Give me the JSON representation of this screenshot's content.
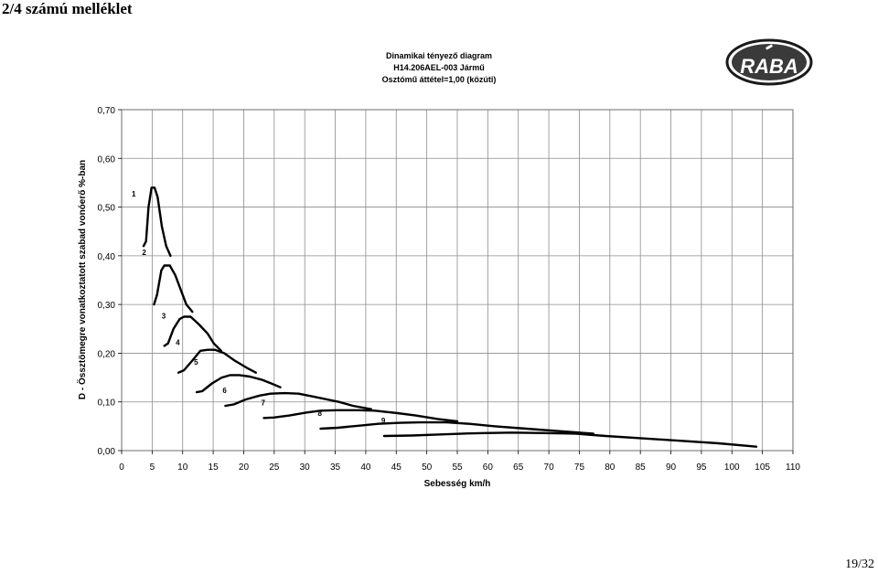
{
  "header": {
    "text": "2/4 számú melléklet"
  },
  "title": {
    "line1": "Dinamikai tényező diagram",
    "line2": "H14.206AEL-003 Jármű",
    "line3": "Osztómű áttétel=1,00 (közúti)"
  },
  "logo": {
    "text": "RABA"
  },
  "page_number": "19/32",
  "chart_data": {
    "type": "line",
    "xlabel": "Sebesség km/h",
    "ylabel": "D - Össztömegre vonatkoztatott szabad vonóerő %-ban",
    "xlim": [
      0,
      110
    ],
    "ylim": [
      0,
      0.7
    ],
    "x_ticks": [
      "0",
      "5",
      "10",
      "15",
      "20",
      "25",
      "30",
      "35",
      "40",
      "45",
      "50",
      "55",
      "60",
      "65",
      "70",
      "75",
      "80",
      "85",
      "90",
      "95",
      "100",
      "105",
      "110"
    ],
    "y_ticks": [
      "0,00",
      "0,10",
      "0,20",
      "0,30",
      "0,40",
      "0,50",
      "0,60",
      "0,70"
    ],
    "grid": true,
    "series": [
      {
        "name": "1",
        "points": [
          [
            3.6,
            0.42
          ],
          [
            4.0,
            0.43
          ],
          [
            4.4,
            0.5
          ],
          [
            4.9,
            0.54
          ],
          [
            5.4,
            0.54
          ],
          [
            5.9,
            0.52
          ],
          [
            6.6,
            0.46
          ],
          [
            7.3,
            0.42
          ],
          [
            8.0,
            0.4
          ]
        ]
      },
      {
        "name": "2",
        "points": [
          [
            5.3,
            0.3
          ],
          [
            5.8,
            0.32
          ],
          [
            6.5,
            0.37
          ],
          [
            7.0,
            0.38
          ],
          [
            7.9,
            0.38
          ],
          [
            8.8,
            0.36
          ],
          [
            9.7,
            0.33
          ],
          [
            10.6,
            0.3
          ],
          [
            11.6,
            0.285
          ]
        ]
      },
      {
        "name": "3",
        "points": [
          [
            7.0,
            0.215
          ],
          [
            7.6,
            0.22
          ],
          [
            8.5,
            0.25
          ],
          [
            9.5,
            0.27
          ],
          [
            10.2,
            0.275
          ],
          [
            11.3,
            0.275
          ],
          [
            12.6,
            0.26
          ],
          [
            14.1,
            0.24
          ],
          [
            15.1,
            0.22
          ],
          [
            16.3,
            0.205
          ]
        ]
      },
      {
        "name": "4",
        "points": [
          [
            9.3,
            0.16
          ],
          [
            10.2,
            0.165
          ],
          [
            11.6,
            0.185
          ],
          [
            12.9,
            0.205
          ],
          [
            14.1,
            0.207
          ],
          [
            15.3,
            0.207
          ],
          [
            16.8,
            0.2
          ],
          [
            18.5,
            0.185
          ],
          [
            20.5,
            0.17
          ],
          [
            22.0,
            0.16
          ]
        ]
      },
      {
        "name": "5",
        "points": [
          [
            12.3,
            0.12
          ],
          [
            13.2,
            0.122
          ],
          [
            14.8,
            0.138
          ],
          [
            16.4,
            0.15
          ],
          [
            17.8,
            0.155
          ],
          [
            19.3,
            0.155
          ],
          [
            21.0,
            0.152
          ],
          [
            23.1,
            0.145
          ],
          [
            24.5,
            0.138
          ],
          [
            26.0,
            0.13
          ]
        ]
      },
      {
        "name": "6",
        "points": [
          [
            17.0,
            0.092
          ],
          [
            18.4,
            0.095
          ],
          [
            20.3,
            0.105
          ],
          [
            22.6,
            0.113
          ],
          [
            24.4,
            0.117
          ],
          [
            26.7,
            0.118
          ],
          [
            29.0,
            0.117
          ],
          [
            31.8,
            0.11
          ],
          [
            35.6,
            0.1
          ],
          [
            37.9,
            0.092
          ],
          [
            40.9,
            0.085
          ]
        ]
      },
      {
        "name": "7",
        "points": [
          [
            23.3,
            0.067
          ],
          [
            24.9,
            0.068
          ],
          [
            27.5,
            0.072
          ],
          [
            30.2,
            0.078
          ],
          [
            32.6,
            0.082
          ],
          [
            35.3,
            0.083
          ],
          [
            38.9,
            0.083
          ],
          [
            41.5,
            0.082
          ],
          [
            45.2,
            0.077
          ],
          [
            48.2,
            0.072
          ],
          [
            51.8,
            0.065
          ],
          [
            55.0,
            0.06
          ]
        ]
      },
      {
        "name": "8",
        "points": [
          [
            32.6,
            0.045
          ],
          [
            35.4,
            0.047
          ],
          [
            38.8,
            0.051
          ],
          [
            42.0,
            0.055
          ],
          [
            45.7,
            0.057
          ],
          [
            49.0,
            0.058
          ],
          [
            53.2,
            0.058
          ],
          [
            57.0,
            0.055
          ],
          [
            61.2,
            0.05
          ],
          [
            66.3,
            0.045
          ],
          [
            71.7,
            0.04
          ],
          [
            77.3,
            0.035
          ]
        ]
      },
      {
        "name": "9",
        "points": [
          [
            43.0,
            0.03
          ],
          [
            47.5,
            0.031
          ],
          [
            51.8,
            0.033
          ],
          [
            55.9,
            0.035
          ],
          [
            59.5,
            0.036
          ],
          [
            64.0,
            0.037
          ],
          [
            69.2,
            0.036
          ],
          [
            74.3,
            0.035
          ],
          [
            79.3,
            0.03
          ],
          [
            85.6,
            0.025
          ],
          [
            91.7,
            0.02
          ],
          [
            97.8,
            0.015
          ],
          [
            104.0,
            0.008
          ]
        ]
      }
    ]
  }
}
